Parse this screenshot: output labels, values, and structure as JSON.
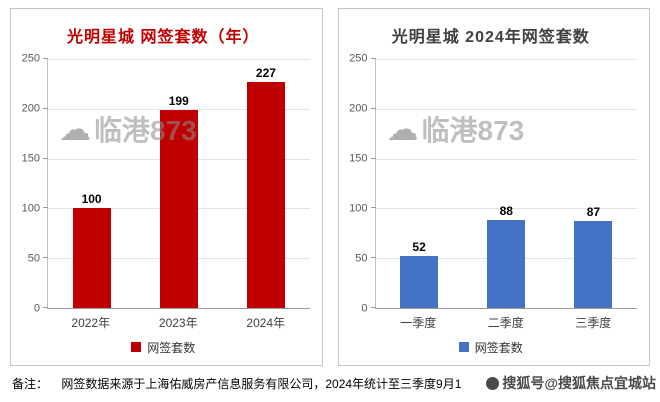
{
  "watermark": {
    "text": "临港873"
  },
  "sohu_watermark": {
    "text": "搜狐号@搜狐焦点宜城站"
  },
  "note": {
    "label": "备注：",
    "text": "网签数据来源于上海佑威房产信息服务有限公司，2024年统计至三季度9月1"
  },
  "chart_data": [
    {
      "type": "bar",
      "title": "光明星城 网签套数（年）",
      "title_color": "#c00000",
      "categories": [
        "2022年",
        "2023年",
        "2024年"
      ],
      "values": [
        100,
        199,
        227
      ],
      "bar_color": "#c00000",
      "legend": "网签套数",
      "xlabel": "",
      "ylabel": "",
      "ylim": [
        0,
        250
      ],
      "yticks": [
        0,
        50,
        100,
        150,
        200,
        250
      ],
      "grid": true,
      "legend_position": "bottom"
    },
    {
      "type": "bar",
      "title": "光明星城 2024年网签套数",
      "title_color": "#404040",
      "categories": [
        "一季度",
        "二季度",
        "三季度"
      ],
      "values": [
        52,
        88,
        87
      ],
      "bar_color": "#4472c4",
      "legend": "网签套数",
      "xlabel": "",
      "ylabel": "",
      "ylim": [
        0,
        250
      ],
      "yticks": [
        0,
        50,
        100,
        150,
        200,
        250
      ],
      "grid": true,
      "legend_position": "bottom"
    }
  ]
}
